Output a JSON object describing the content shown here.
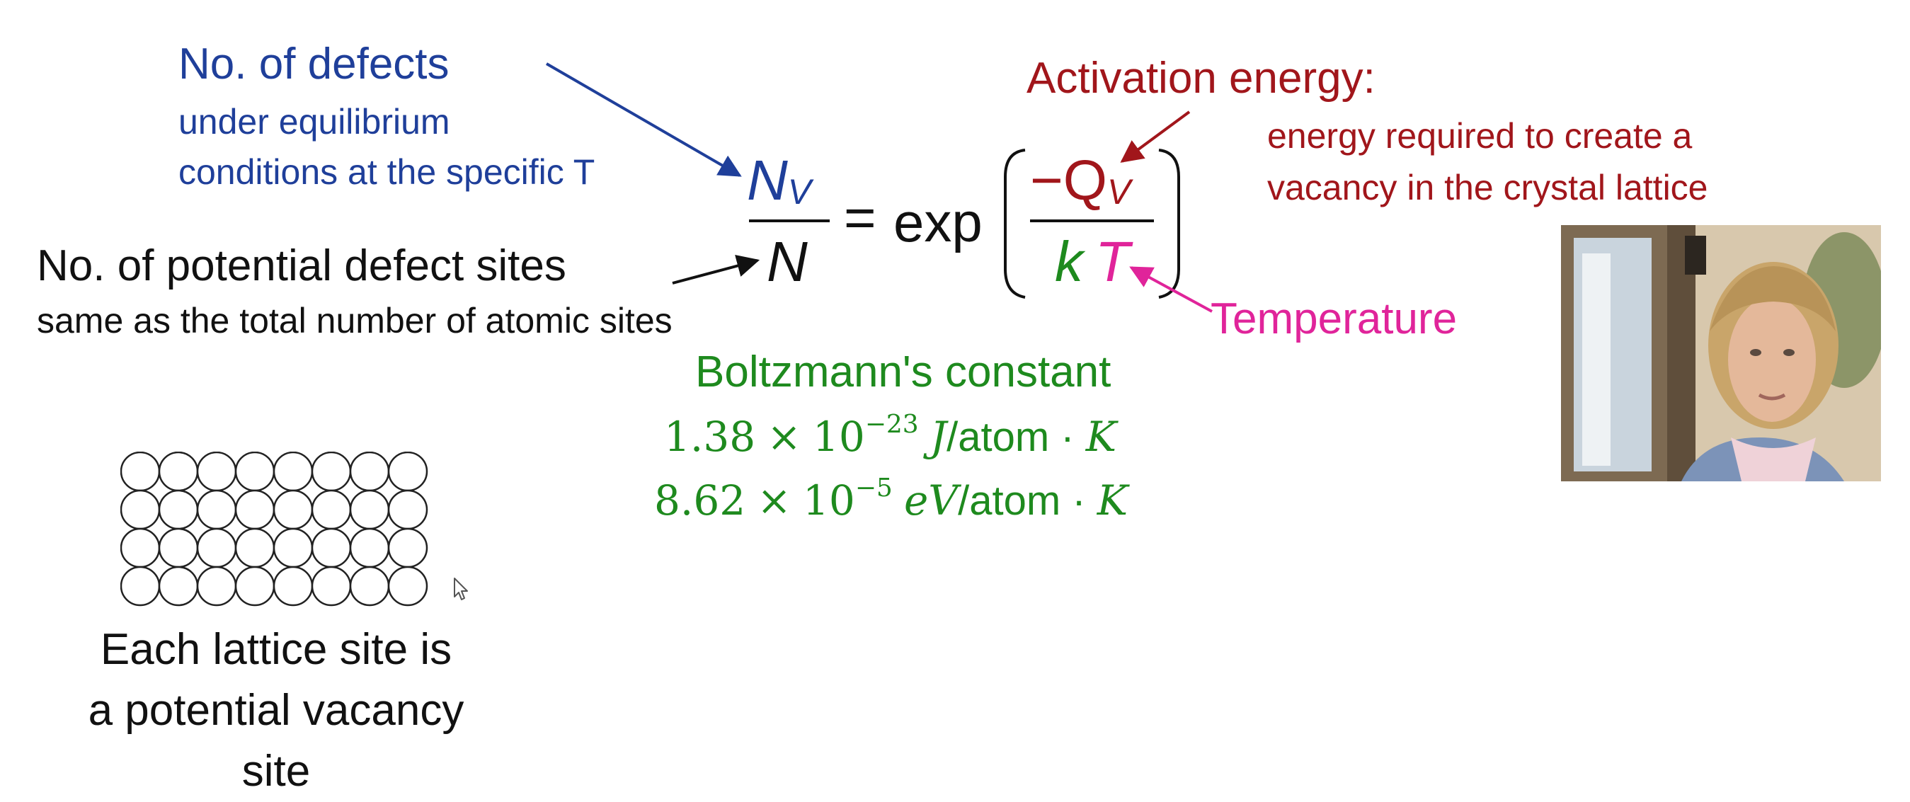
{
  "labels": {
    "defects_title": "No. of defects",
    "defects_sub1": "under equilibrium",
    "defects_sub2": "conditions at the specific T",
    "sites_title": "No. of potential defect sites",
    "sites_sub": "same as the total number of atomic sites",
    "activation_title": "Activation energy:",
    "activation_sub1": "energy required to create a",
    "activation_sub2": "vacancy in the crystal lattice",
    "temperature": "Temperature",
    "boltzmann": "Boltzmann's constant",
    "lattice_caption": "Each lattice site is a potential vacancy site"
  },
  "equation": {
    "numerator_left": "N",
    "numerator_left_sub": "V",
    "denominator_left": "N",
    "equals": "=",
    "function": "exp",
    "numerator_right": "−Q",
    "numerator_right_sub": "V",
    "denominator_k": "k",
    "denominator_t": "T"
  },
  "constants": {
    "value1_mantissa": "1.38",
    "value1_times": "×",
    "value1_base": "10",
    "value1_exp": "−23",
    "value1_unit": "J",
    "value1_unit_rest": "/atom · ",
    "value1_unit_k": "K",
    "value2_mantissa": "8.62",
    "value2_times": "×",
    "value2_base": "10",
    "value2_exp": "−5",
    "value2_unit": "eV",
    "value2_unit_rest": "/atom · ",
    "value2_unit_k": "K"
  },
  "lattice": {
    "rows": 4,
    "cols": 8
  },
  "colors": {
    "blue": "#1f3f9a",
    "red": "#a1161b",
    "green": "#1e8a1e",
    "magenta": "#e0249a",
    "black": "#111111"
  }
}
